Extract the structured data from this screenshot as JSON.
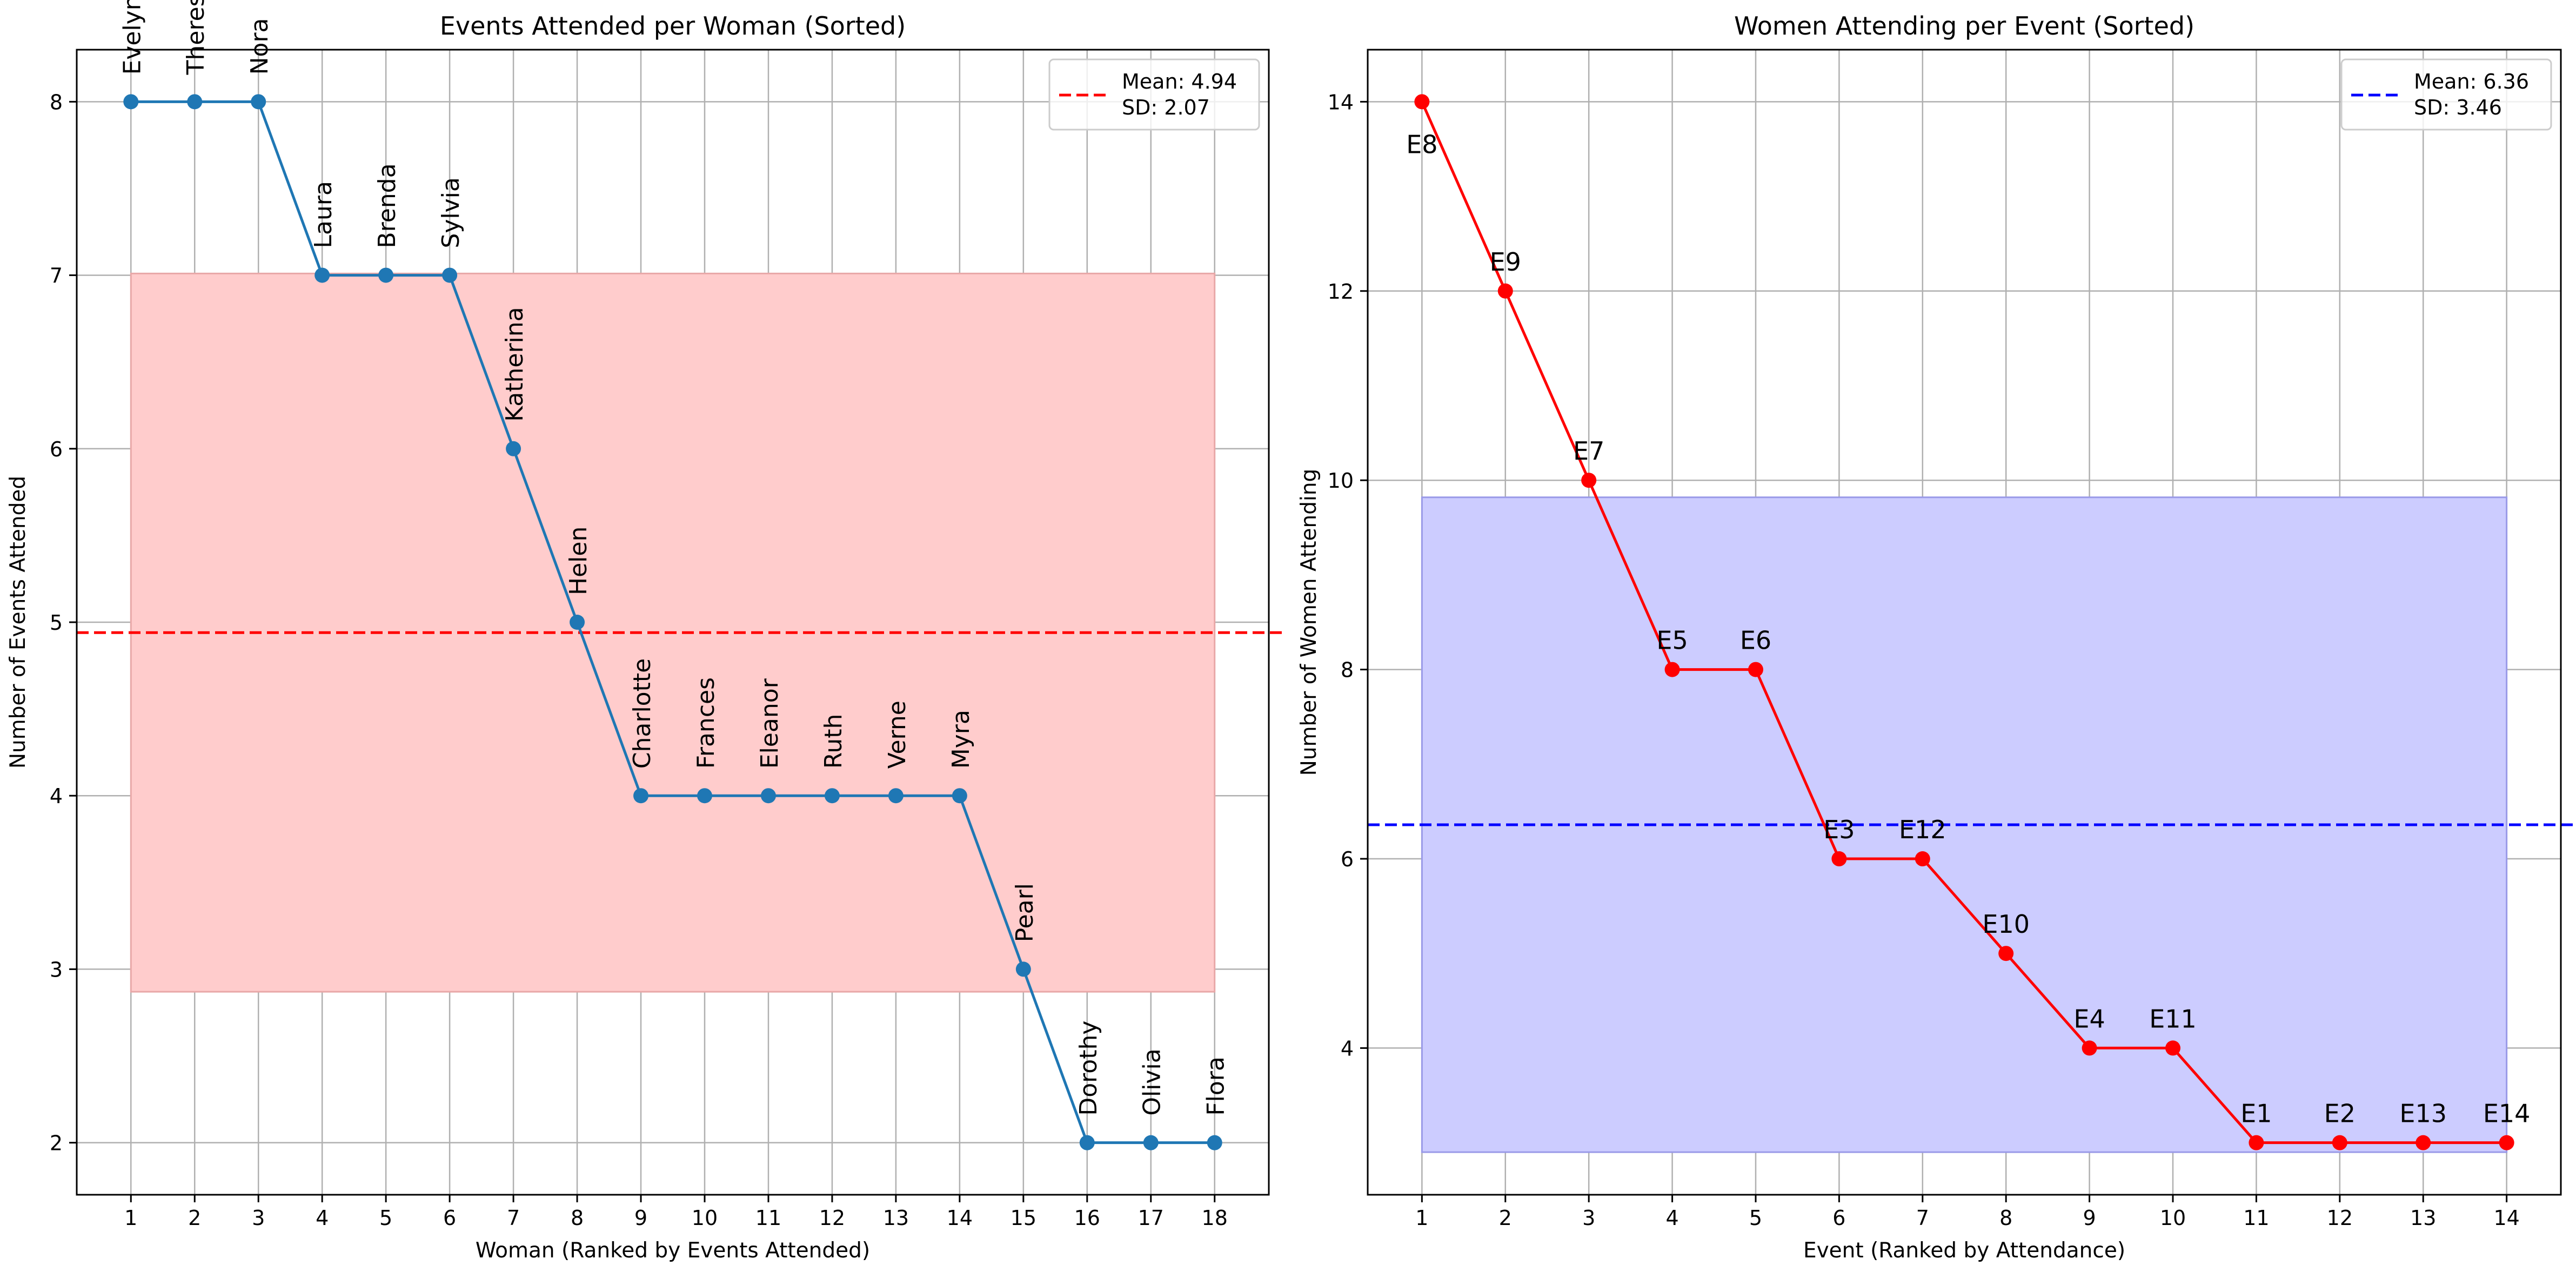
{
  "chart_data": [
    {
      "type": "line",
      "title": "Events Attended per Woman (Sorted)",
      "xlabel": "Woman (Ranked by Events Attended)",
      "ylabel": "Number of Events Attended",
      "x": [
        1,
        2,
        3,
        4,
        5,
        6,
        7,
        8,
        9,
        10,
        11,
        12,
        13,
        14,
        15,
        16,
        17,
        18
      ],
      "values": [
        8,
        8,
        8,
        7,
        7,
        7,
        6,
        5,
        4,
        4,
        4,
        4,
        4,
        4,
        3,
        2,
        2,
        2
      ],
      "point_labels": [
        "Evelyn",
        "Theresa",
        "Nora",
        "Laura",
        "Brenda",
        "Sylvia",
        "Katherina",
        "Helen",
        "Charlotte",
        "Frances",
        "Eleanor",
        "Ruth",
        "Verne",
        "Myra",
        "Pearl",
        "Dorothy",
        "Olivia",
        "Flora"
      ],
      "xlim": [
        0.15,
        18.85
      ],
      "ylim": [
        1.7,
        8.3
      ],
      "xticks": [
        "1",
        "2",
        "3",
        "4",
        "5",
        "6",
        "7",
        "8",
        "9",
        "10",
        "11",
        "12",
        "13",
        "14",
        "15",
        "16",
        "17",
        "18"
      ],
      "yticks": [
        2,
        3,
        4,
        5,
        6,
        7,
        8
      ],
      "mean": 4.94,
      "sd": 2.07,
      "band": [
        2.87,
        7.01
      ],
      "legend": [
        "Mean: 4.94",
        "SD: 2.07"
      ],
      "legend_position": "upper right",
      "grid": true,
      "line_color": "#1f77b4",
      "mean_color": "#ff0000",
      "band_color": "#ffcccc"
    },
    {
      "type": "line",
      "title": "Women Attending per Event (Sorted)",
      "xlabel": "Event (Ranked by Attendance)",
      "ylabel": "Number of Women Attending",
      "x": [
        1,
        2,
        3,
        4,
        5,
        6,
        7,
        8,
        9,
        10,
        11,
        12,
        13,
        14
      ],
      "values": [
        14,
        12,
        10,
        8,
        8,
        6,
        6,
        5,
        4,
        4,
        3,
        3,
        3,
        3
      ],
      "point_labels": [
        "E8",
        "E9",
        "E7",
        "E5",
        "E6",
        "E3",
        "E12",
        "E10",
        "E4",
        "E11",
        "E1",
        "E2",
        "E13",
        "E14"
      ],
      "xlim": [
        0.35,
        14.65
      ],
      "ylim": [
        2.45,
        14.55
      ],
      "xticks": [
        "1",
        "2",
        "3",
        "4",
        "5",
        "6",
        "7",
        "8",
        "9",
        "10",
        "11",
        "12",
        "13",
        "14"
      ],
      "yticks": [
        4,
        6,
        8,
        10,
        12,
        14
      ],
      "mean": 6.36,
      "sd": 3.46,
      "band": [
        2.9,
        9.82
      ],
      "legend": [
        "Mean: 6.36",
        "SD: 3.46"
      ],
      "legend_position": "upper right",
      "grid": true,
      "line_color": "#ff0000",
      "mean_color": "#0000ff",
      "band_color": "#ccccff"
    }
  ]
}
